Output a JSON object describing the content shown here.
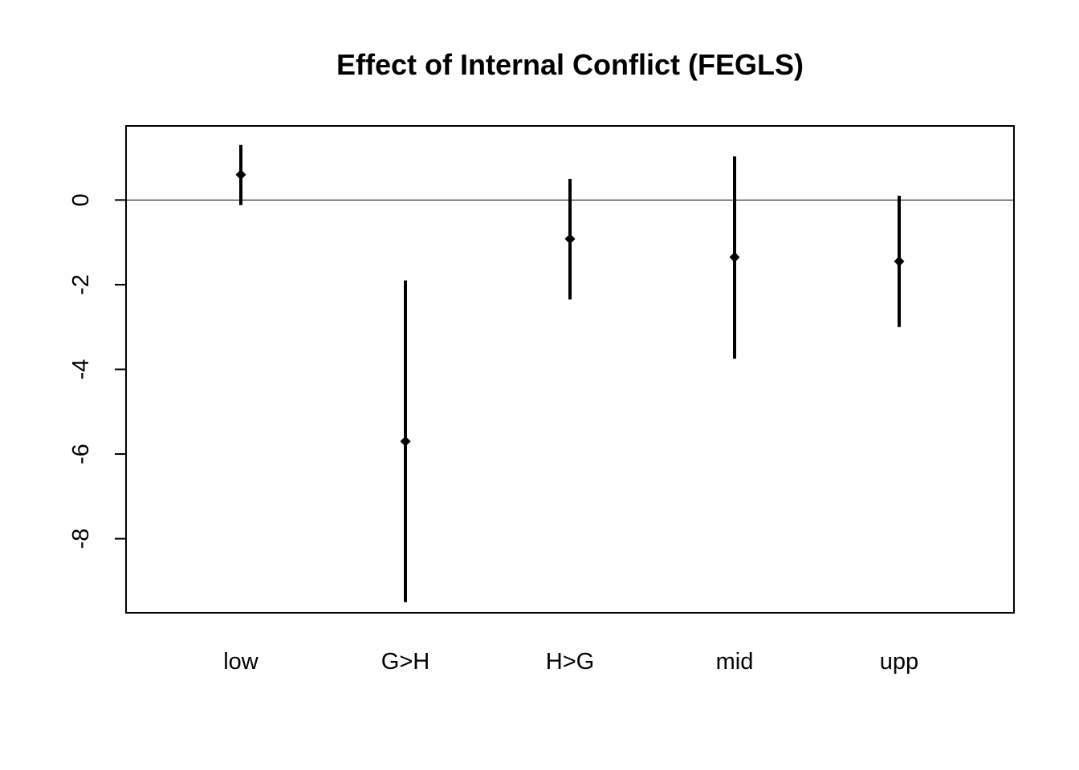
{
  "chart_data": {
    "type": "scatter",
    "title": "Effect of Internal Conflict (FEGLS)",
    "xlabel": "",
    "ylabel": "",
    "categories": [
      "low",
      "G>H",
      "H>G",
      "mid",
      "upp"
    ],
    "estimates": [
      0.6,
      -5.7,
      -0.92,
      -1.35,
      -1.45
    ],
    "lower": [
      -0.12,
      -9.5,
      -2.35,
      -3.75,
      -3.0
    ],
    "upper": [
      1.3,
      -1.9,
      0.5,
      1.03,
      0.1
    ],
    "ylim": [
      -9.75,
      1.75
    ],
    "yticks": [
      0,
      -2,
      -4,
      -6,
      -8
    ],
    "reference_line": 0,
    "grid": false,
    "legend": "none",
    "colors": {
      "marks": "#000000",
      "frame": "#000000",
      "background": "#ffffff"
    }
  }
}
